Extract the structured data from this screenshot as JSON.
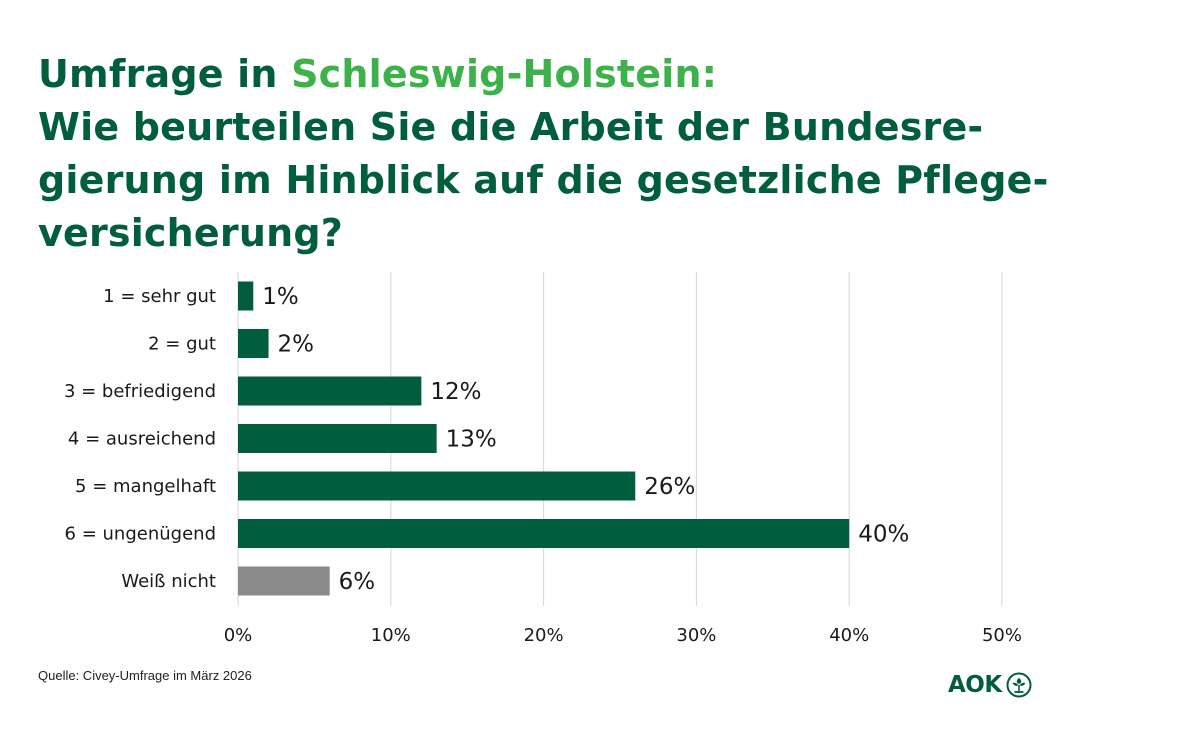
{
  "title": {
    "prefix": "Umfrage in ",
    "highlight": "Schleswig-Holstein:",
    "line2": "Wie beurteilen Sie die Arbeit der Bundesre-",
    "line3": "gierung im Hinblick auf die gesetzliche Pflege-",
    "line4": "versicherung?"
  },
  "source": "Quelle: Civey-Umfrage im März 2026",
  "logo": {
    "text": "AOK",
    "icon": "aok-tree-icon"
  },
  "colors": {
    "primary": "#005e3f",
    "accent": "#3eb24a",
    "unknown_bar": "#8a8a8a",
    "grid": "#d6d6d6"
  },
  "chart_data": {
    "type": "bar",
    "orientation": "horizontal",
    "categories": [
      "1 = sehr gut",
      "2 = gut",
      "3 = befriedigend",
      "4 = ausreichend",
      "5 = mangelhaft",
      "6 = ungenügend",
      "Weiß nicht"
    ],
    "values": [
      1,
      2,
      12,
      13,
      26,
      40,
      6
    ],
    "value_labels": [
      "1%",
      "2%",
      "12%",
      "13%",
      "26%",
      "40%",
      "6%"
    ],
    "bar_colors": [
      "#005e3f",
      "#005e3f",
      "#005e3f",
      "#005e3f",
      "#005e3f",
      "#005e3f",
      "#8a8a8a"
    ],
    "xlim": [
      0,
      50
    ],
    "xticks": [
      0,
      10,
      20,
      30,
      40,
      50
    ],
    "xtick_labels": [
      "0%",
      "10%",
      "20%",
      "30%",
      "40%",
      "50%"
    ],
    "grid": true,
    "legend": "none"
  }
}
